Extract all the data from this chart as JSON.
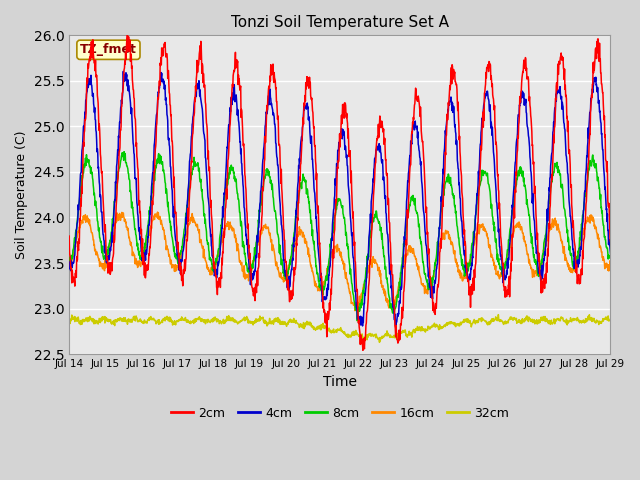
{
  "title": "Tonzi Soil Temperature Set A",
  "xlabel": "Time",
  "ylabel": "Soil Temperature (C)",
  "annotation": "TZ_fmet",
  "ylim": [
    22.5,
    26.0
  ],
  "yticks": [
    22.5,
    23.0,
    23.5,
    24.0,
    24.5,
    25.0,
    25.5,
    26.0
  ],
  "n_days": 15,
  "xtick_labels": [
    "Jul 14",
    "Jul 15",
    "Jul 16",
    "Jul 17",
    "Jul 18",
    "Jul 19",
    "Jul 20",
    "Jul 21",
    "Jul 22",
    "Jul 23",
    "Jul 24",
    "Jul 25",
    "Jul 26",
    "Jul 27",
    "Jul 28",
    "Jul 29"
  ],
  "colors": {
    "2cm": "#ff0000",
    "4cm": "#0000cc",
    "8cm": "#00cc00",
    "16cm": "#ff8800",
    "32cm": "#cccc00"
  },
  "legend_labels": [
    "2cm",
    "4cm",
    "8cm",
    "16cm",
    "32cm"
  ],
  "fig_bg": "#d4d4d4",
  "plot_bg": "#e8e8e8",
  "grid_color": "#ffffff",
  "annot_fg": "#880000",
  "annot_bg": "#ffffcc",
  "annot_border": "#aa8800"
}
